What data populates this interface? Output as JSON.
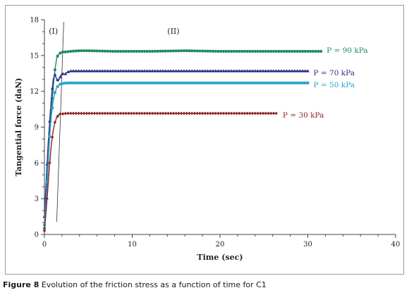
{
  "caption": {
    "label": "Figure 8",
    "text": "Evolution of the friction stress as a function of time for C1"
  },
  "chart_data": {
    "type": "line",
    "xlabel": "Time (sec)",
    "ylabel": "Tangential force (daN)",
    "xlim": [
      0,
      40
    ],
    "ylim": [
      0,
      18
    ],
    "xticks": [
      0,
      10,
      20,
      30,
      40
    ],
    "yticks": [
      0,
      3,
      6,
      9,
      12,
      15,
      18
    ],
    "grid": false,
    "phase_labels": [
      "(I)",
      "(II)"
    ],
    "series": [
      {
        "name": "P = 90 kPa",
        "color": "#1f8a5c",
        "marker": "circle",
        "x": [
          0,
          0.2,
          0.4,
          0.6,
          0.8,
          1.0,
          1.2,
          1.4,
          1.6,
          1.8,
          2.0,
          2.5,
          3,
          4,
          5,
          8,
          12,
          16,
          20,
          25,
          31.5
        ],
        "y": [
          0.5,
          2.5,
          5.5,
          8.2,
          10.5,
          12.3,
          13.8,
          14.8,
          15.1,
          15.2,
          15.3,
          15.3,
          15.35,
          15.4,
          15.4,
          15.35,
          15.35,
          15.4,
          15.35,
          15.35,
          15.35
        ]
      },
      {
        "name": "P = 70 kPa",
        "color": "#2b2f8a",
        "marker": "triangle",
        "x": [
          0,
          0.2,
          0.4,
          0.6,
          0.8,
          1.0,
          1.2,
          1.4,
          1.6,
          1.8,
          2.0,
          2.3,
          2.6,
          3,
          4,
          6,
          10,
          15,
          20,
          25,
          30
        ],
        "y": [
          1.5,
          4.5,
          7.3,
          9.5,
          11.5,
          13.0,
          13.4,
          13.0,
          12.9,
          13.2,
          13.5,
          13.4,
          13.6,
          13.7,
          13.7,
          13.7,
          13.7,
          13.7,
          13.7,
          13.7,
          13.7
        ]
      },
      {
        "name": "P = 50 kPa",
        "color": "#2aa3cf",
        "marker": "square",
        "x": [
          0,
          0.2,
          0.4,
          0.6,
          0.8,
          1.0,
          1.2,
          1.4,
          1.6,
          1.8,
          2.0,
          2.5,
          3,
          4,
          6,
          10,
          15,
          20,
          25,
          30
        ],
        "y": [
          0.8,
          3.0,
          5.8,
          8.2,
          10.0,
          11.2,
          11.9,
          12.3,
          12.5,
          12.6,
          12.65,
          12.7,
          12.7,
          12.7,
          12.7,
          12.7,
          12.7,
          12.7,
          12.7,
          12.7
        ]
      },
      {
        "name": "P = 30 kPa",
        "color": "#8b2323",
        "marker": "diamond",
        "x": [
          0,
          0.2,
          0.4,
          0.6,
          0.8,
          1.0,
          1.2,
          1.4,
          1.6,
          1.8,
          2.0,
          2.5,
          3,
          5,
          8,
          12,
          16,
          20,
          24,
          26.5
        ],
        "y": [
          0.3,
          2.0,
          4.0,
          6.0,
          7.6,
          8.7,
          9.4,
          9.8,
          10.0,
          10.1,
          10.1,
          10.15,
          10.15,
          10.15,
          10.15,
          10.15,
          10.15,
          10.15,
          10.15,
          10.15
        ]
      }
    ]
  }
}
